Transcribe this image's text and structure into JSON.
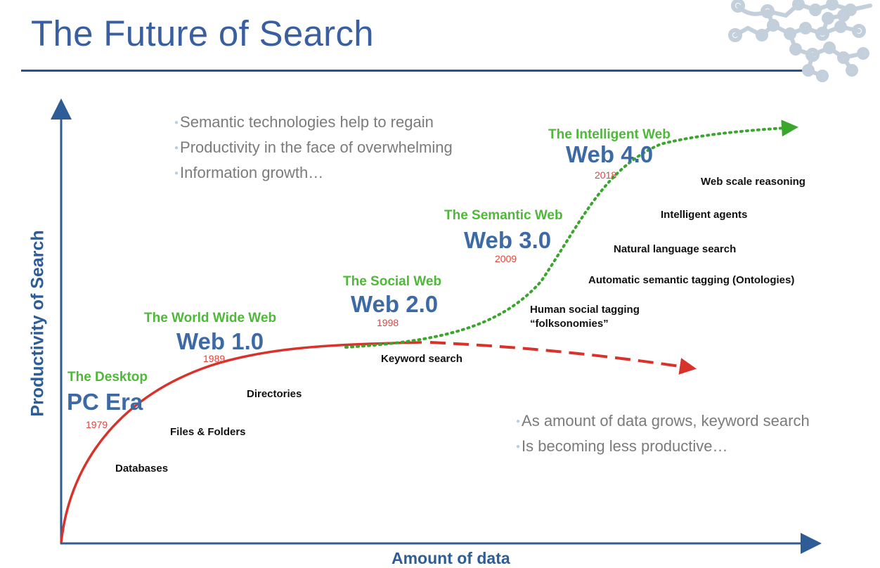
{
  "title": "The Future of Search",
  "axes": {
    "x_label": "Amount of data",
    "y_label": "Productivity of Search"
  },
  "top_note": [
    "Semantic technologies help to regain",
    "Productivity in the face of overwhelming",
    "Information growth…"
  ],
  "bottom_note": [
    "As amount of data grows, keyword search",
    "Is becoming less productive…"
  ],
  "eras": [
    {
      "name": "The Desktop",
      "web": "PC Era",
      "year": "1979"
    },
    {
      "name": "The World Wide Web",
      "web": "Web 1.0",
      "year": "1989"
    },
    {
      "name": "The Social Web",
      "web": "Web 2.0",
      "year": "1998"
    },
    {
      "name": "The Semantic Web",
      "web": "Web 3.0",
      "year": "2009"
    },
    {
      "name": "The Intelligent Web",
      "web": "Web 4.0",
      "year": "2018"
    }
  ],
  "technologies": [
    "Databases",
    "Files & Folders",
    "Directories",
    "Keyword search",
    "Human social tagging",
    "“folksonomies”",
    "Automatic semantic tagging  (Ontologies)",
    "Natural language search",
    "Intelligent agents",
    "Web scale reasoning"
  ],
  "colors": {
    "title": "#3a5fa0",
    "axis": "#2d5c97",
    "era_name": "#4fb83a",
    "web_label": "#3d6aa5",
    "year": "#e0433a",
    "keyword_curve": "#d9322b",
    "semantic_curve": "#3aa62e"
  },
  "decoration": "molecule-network-icon"
}
